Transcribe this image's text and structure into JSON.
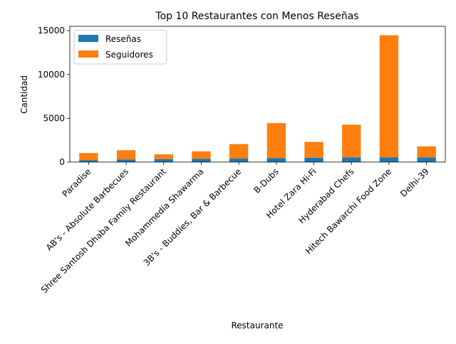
{
  "chart_data": {
    "type": "bar",
    "stacked": true,
    "title": "Top 10 Restaurantes con Menos Reseñas",
    "xlabel": "Restaurante",
    "ylabel": "Cantidad",
    "ylim": [
      0,
      15500
    ],
    "yticks": [
      0,
      5000,
      10000,
      15000
    ],
    "grid": false,
    "legend_position": "top-left",
    "categories": [
      "Paradise",
      "AB's - Absolute Barbecues",
      "Shree Santosh Dhaba Family Restaurant",
      "Mohammedia Shawarma",
      "3B's - Buddies, Bar & Barbecue",
      "B-Dubs",
      "Hotel Zara Hi-Fi",
      "Hyderabad Chefs",
      "Hitech Bawarchi Food Zone",
      "Delhi-39"
    ],
    "series": [
      {
        "name": "Reseñas",
        "color": "#1f77b4",
        "values": [
          230,
          300,
          330,
          370,
          400,
          450,
          500,
          520,
          530,
          540
        ]
      },
      {
        "name": "Seguidores",
        "color": "#ff7f0e",
        "values": [
          800,
          1050,
          550,
          850,
          1650,
          4000,
          1800,
          3750,
          13950,
          1250
        ]
      }
    ]
  }
}
